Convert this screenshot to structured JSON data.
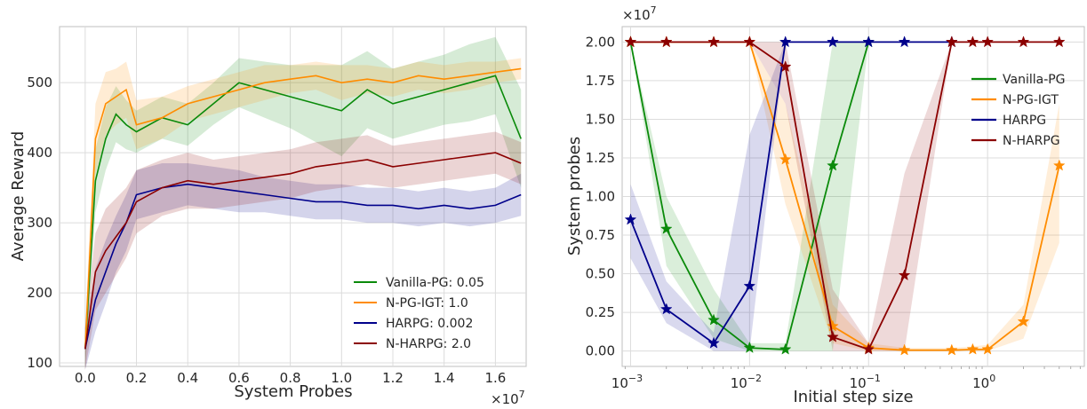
{
  "colors": {
    "Vanilla-PG": "#0a8a0a",
    "N-PG-IGT": "#ff8c00",
    "HARPG": "#00008b",
    "N-HARPG": "#8b0000",
    "grid": "#dcdcdc",
    "frame": "#bfbfbf"
  },
  "chart_data": [
    {
      "type": "line",
      "xlabel": "System Probes",
      "ylabel": "Average Reward",
      "x_multiplier": "×10^7",
      "x_multiplier_base": "×10",
      "x_multiplier_exp": "7",
      "xlim": [
        -0.1,
        1.72
      ],
      "ylim": [
        95,
        580
      ],
      "xticks": [
        0.0,
        0.2,
        0.4,
        0.6,
        0.8,
        1.0,
        1.2,
        1.4,
        1.6
      ],
      "xtick_labels": [
        "0.0",
        "0.2",
        "0.4",
        "0.6",
        "0.8",
        "1.0",
        "1.2",
        "1.4",
        "1.6"
      ],
      "yticks": [
        100,
        200,
        300,
        400,
        500
      ],
      "ytick_labels": [
        "100",
        "200",
        "300",
        "400",
        "500"
      ],
      "grid": true,
      "legend_position": "lower-right",
      "series": [
        {
          "name": "Vanilla-PG: 0.05",
          "color_key": "Vanilla-PG",
          "x": [
            0.0,
            0.04,
            0.08,
            0.12,
            0.16,
            0.2,
            0.3,
            0.4,
            0.5,
            0.6,
            0.7,
            0.8,
            0.9,
            1.0,
            1.1,
            1.2,
            1.3,
            1.4,
            1.5,
            1.6,
            1.7
          ],
          "y": [
            120,
            360,
            420,
            455,
            440,
            430,
            450,
            440,
            470,
            500,
            490,
            480,
            470,
            460,
            490,
            470,
            480,
            490,
            500,
            510,
            420
          ],
          "band": [
            30,
            45,
            45,
            40,
            35,
            30,
            30,
            30,
            30,
            35,
            40,
            45,
            55,
            65,
            55,
            50,
            50,
            50,
            55,
            55,
            70
          ]
        },
        {
          "name": "N-PG-IGT: 1.0",
          "color_key": "N-PG-IGT",
          "x": [
            0.0,
            0.04,
            0.08,
            0.12,
            0.16,
            0.2,
            0.3,
            0.4,
            0.5,
            0.6,
            0.7,
            0.8,
            0.9,
            1.0,
            1.1,
            1.2,
            1.3,
            1.4,
            1.5,
            1.6,
            1.7
          ],
          "y": [
            120,
            420,
            470,
            480,
            490,
            440,
            450,
            470,
            480,
            490,
            500,
            505,
            510,
            500,
            505,
            500,
            510,
            505,
            510,
            515,
            520
          ],
          "band": [
            30,
            50,
            45,
            40,
            40,
            35,
            30,
            25,
            25,
            25,
            25,
            20,
            20,
            25,
            20,
            20,
            20,
            20,
            20,
            15,
            15
          ]
        },
        {
          "name": "HARPG: 0.002",
          "color_key": "HARPG",
          "x": [
            0.0,
            0.04,
            0.08,
            0.12,
            0.16,
            0.2,
            0.3,
            0.4,
            0.5,
            0.6,
            0.7,
            0.8,
            0.9,
            1.0,
            1.1,
            1.2,
            1.3,
            1.4,
            1.5,
            1.6,
            1.7
          ],
          "y": [
            120,
            190,
            230,
            270,
            300,
            340,
            350,
            355,
            350,
            345,
            340,
            335,
            330,
            330,
            325,
            325,
            320,
            325,
            320,
            325,
            340
          ],
          "band": [
            30,
            45,
            45,
            40,
            40,
            35,
            35,
            30,
            30,
            30,
            25,
            25,
            25,
            25,
            25,
            25,
            25,
            25,
            25,
            25,
            30
          ]
        },
        {
          "name": "N-HARPG: 2.0",
          "color_key": "N-HARPG",
          "x": [
            0.0,
            0.04,
            0.08,
            0.12,
            0.16,
            0.2,
            0.3,
            0.4,
            0.5,
            0.6,
            0.7,
            0.8,
            0.9,
            1.0,
            1.1,
            1.2,
            1.3,
            1.4,
            1.5,
            1.6,
            1.7
          ],
          "y": [
            120,
            230,
            260,
            280,
            300,
            330,
            350,
            360,
            355,
            360,
            365,
            370,
            380,
            385,
            390,
            380,
            385,
            390,
            395,
            400,
            385
          ],
          "band": [
            30,
            55,
            60,
            55,
            50,
            45,
            40,
            40,
            35,
            35,
            35,
            35,
            35,
            35,
            35,
            30,
            30,
            30,
            30,
            30,
            30
          ]
        }
      ]
    },
    {
      "type": "line",
      "xlabel": "Initial step size",
      "ylabel": "System probes",
      "y_multiplier": "×10^7",
      "y_multiplier_base": "×10",
      "y_multiplier_exp": "7",
      "x_scale": "log",
      "xlim": [
        0.00085,
        6.5
      ],
      "ylim": [
        -0.1,
        2.1
      ],
      "xticks": [
        0.001,
        0.01,
        0.1,
        1
      ],
      "xtick_labels_base": [
        "10",
        "10",
        "10",
        "10"
      ],
      "xtick_labels_exp": [
        "−3",
        "−2",
        "−1",
        "0"
      ],
      "yticks": [
        0.0,
        0.25,
        0.5,
        0.75,
        1.0,
        1.25,
        1.5,
        1.75,
        2.0
      ],
      "ytick_labels": [
        "0.00",
        "0.25",
        "0.50",
        "0.75",
        "1.00",
        "1.25",
        "1.50",
        "1.75",
        "2.00"
      ],
      "grid": true,
      "legend_position": "upper-right",
      "series": [
        {
          "name": "Vanilla-PG",
          "color_key": "Vanilla-PG",
          "x": [
            0.001,
            0.002,
            0.005,
            0.01,
            0.02,
            0.05,
            0.1
          ],
          "y": [
            2.0,
            0.79,
            0.2,
            0.02,
            0.01,
            1.2,
            2.0
          ],
          "lower": [
            2.0,
            0.55,
            0.08,
            0.0,
            0.0,
            0.0,
            2.0
          ],
          "upper": [
            2.0,
            1.0,
            0.4,
            0.05,
            0.05,
            2.0,
            2.0
          ]
        },
        {
          "name": "N-PG-IGT",
          "color_key": "N-PG-IGT",
          "x": [
            0.001,
            0.002,
            0.005,
            0.01,
            0.02,
            0.05,
            0.1,
            0.2,
            0.5,
            0.75,
            1,
            2,
            4
          ],
          "y": [
            2.0,
            2.0,
            2.0,
            2.0,
            1.24,
            0.16,
            0.02,
            0.005,
            0.005,
            0.01,
            0.01,
            0.19,
            1.2
          ],
          "lower": [
            2.0,
            2.0,
            2.0,
            2.0,
            0.95,
            0.05,
            0.0,
            0.0,
            0.0,
            0.0,
            0.0,
            0.08,
            0.7
          ],
          "upper": [
            2.0,
            2.0,
            2.0,
            2.0,
            1.6,
            0.3,
            0.05,
            0.02,
            0.02,
            0.03,
            0.04,
            0.3,
            1.6
          ]
        },
        {
          "name": "HARPG",
          "color_key": "HARPG",
          "x": [
            0.001,
            0.002,
            0.005,
            0.01,
            0.02,
            0.05,
            0.1,
            0.2,
            0.5
          ],
          "y": [
            0.85,
            0.27,
            0.05,
            0.42,
            2.0,
            2.0,
            2.0,
            2.0,
            2.0
          ],
          "lower": [
            0.6,
            0.18,
            0.0,
            0.0,
            2.0,
            2.0,
            2.0,
            2.0,
            2.0
          ],
          "upper": [
            1.08,
            0.45,
            0.12,
            1.4,
            2.0,
            2.0,
            2.0,
            2.0,
            2.0
          ]
        },
        {
          "name": "N-HARPG",
          "color_key": "N-HARPG",
          "x": [
            0.001,
            0.002,
            0.005,
            0.01,
            0.02,
            0.05,
            0.1,
            0.2,
            0.5,
            0.75,
            1,
            2,
            4
          ],
          "y": [
            2.0,
            2.0,
            2.0,
            2.0,
            1.84,
            0.09,
            0.01,
            0.49,
            2.0,
            2.0,
            2.0,
            2.0,
            2.0
          ],
          "lower": [
            2.0,
            2.0,
            2.0,
            2.0,
            1.6,
            0.0,
            0.0,
            0.0,
            2.0,
            2.0,
            2.0,
            2.0,
            2.0
          ],
          "upper": [
            2.0,
            2.0,
            2.0,
            2.0,
            2.0,
            0.4,
            0.05,
            1.15,
            2.0,
            2.0,
            2.0,
            2.0,
            2.0
          ]
        }
      ]
    }
  ]
}
